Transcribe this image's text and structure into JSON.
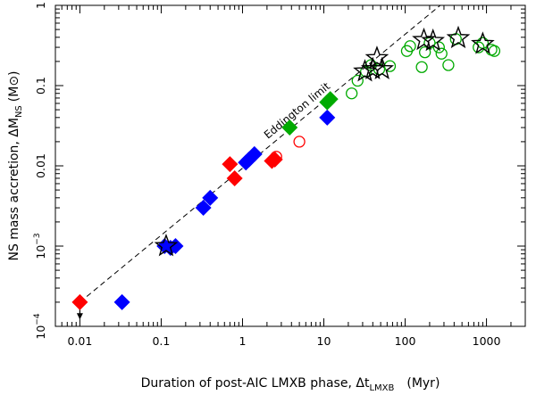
{
  "chart_data": {
    "type": "scatter",
    "xlabel": "Duration of post-AIC LMXB phase, Δt",
    "xlabel_subscript": "LMXB",
    "xlabel_unit": "(Myr)",
    "ylabel": "NS mass accretion, ΔM",
    "ylabel_subscript": "NS",
    "ylabel_unit": "(M⊙)",
    "xscale": "log",
    "yscale": "log",
    "xlim": [
      0.005,
      3000
    ],
    "ylim": [
      0.0001,
      1
    ],
    "x_ticks": [
      {
        "value": 0.01,
        "label": "0.01"
      },
      {
        "value": 0.1,
        "label": "0.1"
      },
      {
        "value": 1,
        "label": "1"
      },
      {
        "value": 10,
        "label": "10"
      },
      {
        "value": 100,
        "label": "100"
      },
      {
        "value": 1000,
        "label": "1000"
      }
    ],
    "y_ticks": [
      {
        "value": 0.0001,
        "base": "10",
        "exp": "−4"
      },
      {
        "value": 0.001,
        "base": "10",
        "exp": "−3"
      },
      {
        "value": 0.01,
        "base": "0.01",
        "exp": ""
      },
      {
        "value": 0.1,
        "base": "0.1",
        "exp": ""
      },
      {
        "value": 1,
        "base": "1",
        "exp": ""
      }
    ],
    "grid": false,
    "eddington_line": {
      "label": "Eddington limit",
      "x": [
        0.01,
        270
      ],
      "y": [
        0.0002,
        1
      ]
    },
    "upper_limit_arrow": {
      "x": 0.01,
      "y_from": 0.0002,
      "y_to": 0.000125
    },
    "series": [
      {
        "marker": "diamond",
        "color": "#ff0000",
        "points": [
          [
            0.01,
            0.0002
          ],
          [
            0.7,
            0.0105
          ],
          [
            0.8,
            0.007
          ],
          [
            2.3,
            0.0115
          ],
          [
            2.5,
            0.012
          ]
        ]
      },
      {
        "marker": "diamond",
        "color": "#0000ff",
        "points": [
          [
            0.033,
            0.0002
          ],
          [
            0.11,
            0.001
          ],
          [
            0.13,
            0.00095
          ],
          [
            0.15,
            0.001
          ],
          [
            0.33,
            0.003
          ],
          [
            0.4,
            0.004
          ],
          [
            1.1,
            0.011
          ],
          [
            1.2,
            0.012
          ],
          [
            1.4,
            0.014
          ],
          [
            11,
            0.04
          ]
        ]
      },
      {
        "marker": "diamond",
        "color": "#00aa00",
        "points": [
          [
            3.8,
            0.03
          ],
          [
            11,
            0.062
          ],
          [
            12,
            0.068
          ]
        ]
      },
      {
        "marker": "circle",
        "color": "#ff0000",
        "points": [
          [
            2.6,
            0.013
          ],
          [
            5,
            0.02
          ]
        ]
      },
      {
        "marker": "circle",
        "color": "#00aa00",
        "points": [
          [
            22,
            0.08
          ],
          [
            26,
            0.115
          ],
          [
            33,
            0.15
          ],
          [
            38,
            0.18
          ],
          [
            48,
            0.16
          ],
          [
            65,
            0.175
          ],
          [
            105,
            0.27
          ],
          [
            115,
            0.31
          ],
          [
            160,
            0.17
          ],
          [
            175,
            0.26
          ],
          [
            200,
            0.34
          ],
          [
            260,
            0.3
          ],
          [
            280,
            0.25
          ],
          [
            340,
            0.18
          ],
          [
            420,
            0.38
          ],
          [
            800,
            0.3
          ],
          [
            900,
            0.34
          ],
          [
            1150,
            0.28
          ],
          [
            1250,
            0.27
          ]
        ]
      },
      {
        "marker": "star",
        "color": "#000000",
        "points": [
          [
            0.115,
            0.001
          ],
          [
            32,
            0.15
          ],
          [
            40,
            0.16
          ],
          [
            45,
            0.22
          ],
          [
            52,
            0.16
          ],
          [
            170,
            0.37
          ],
          [
            220,
            0.36
          ],
          [
            450,
            0.39
          ],
          [
            900,
            0.33
          ]
        ]
      }
    ]
  }
}
